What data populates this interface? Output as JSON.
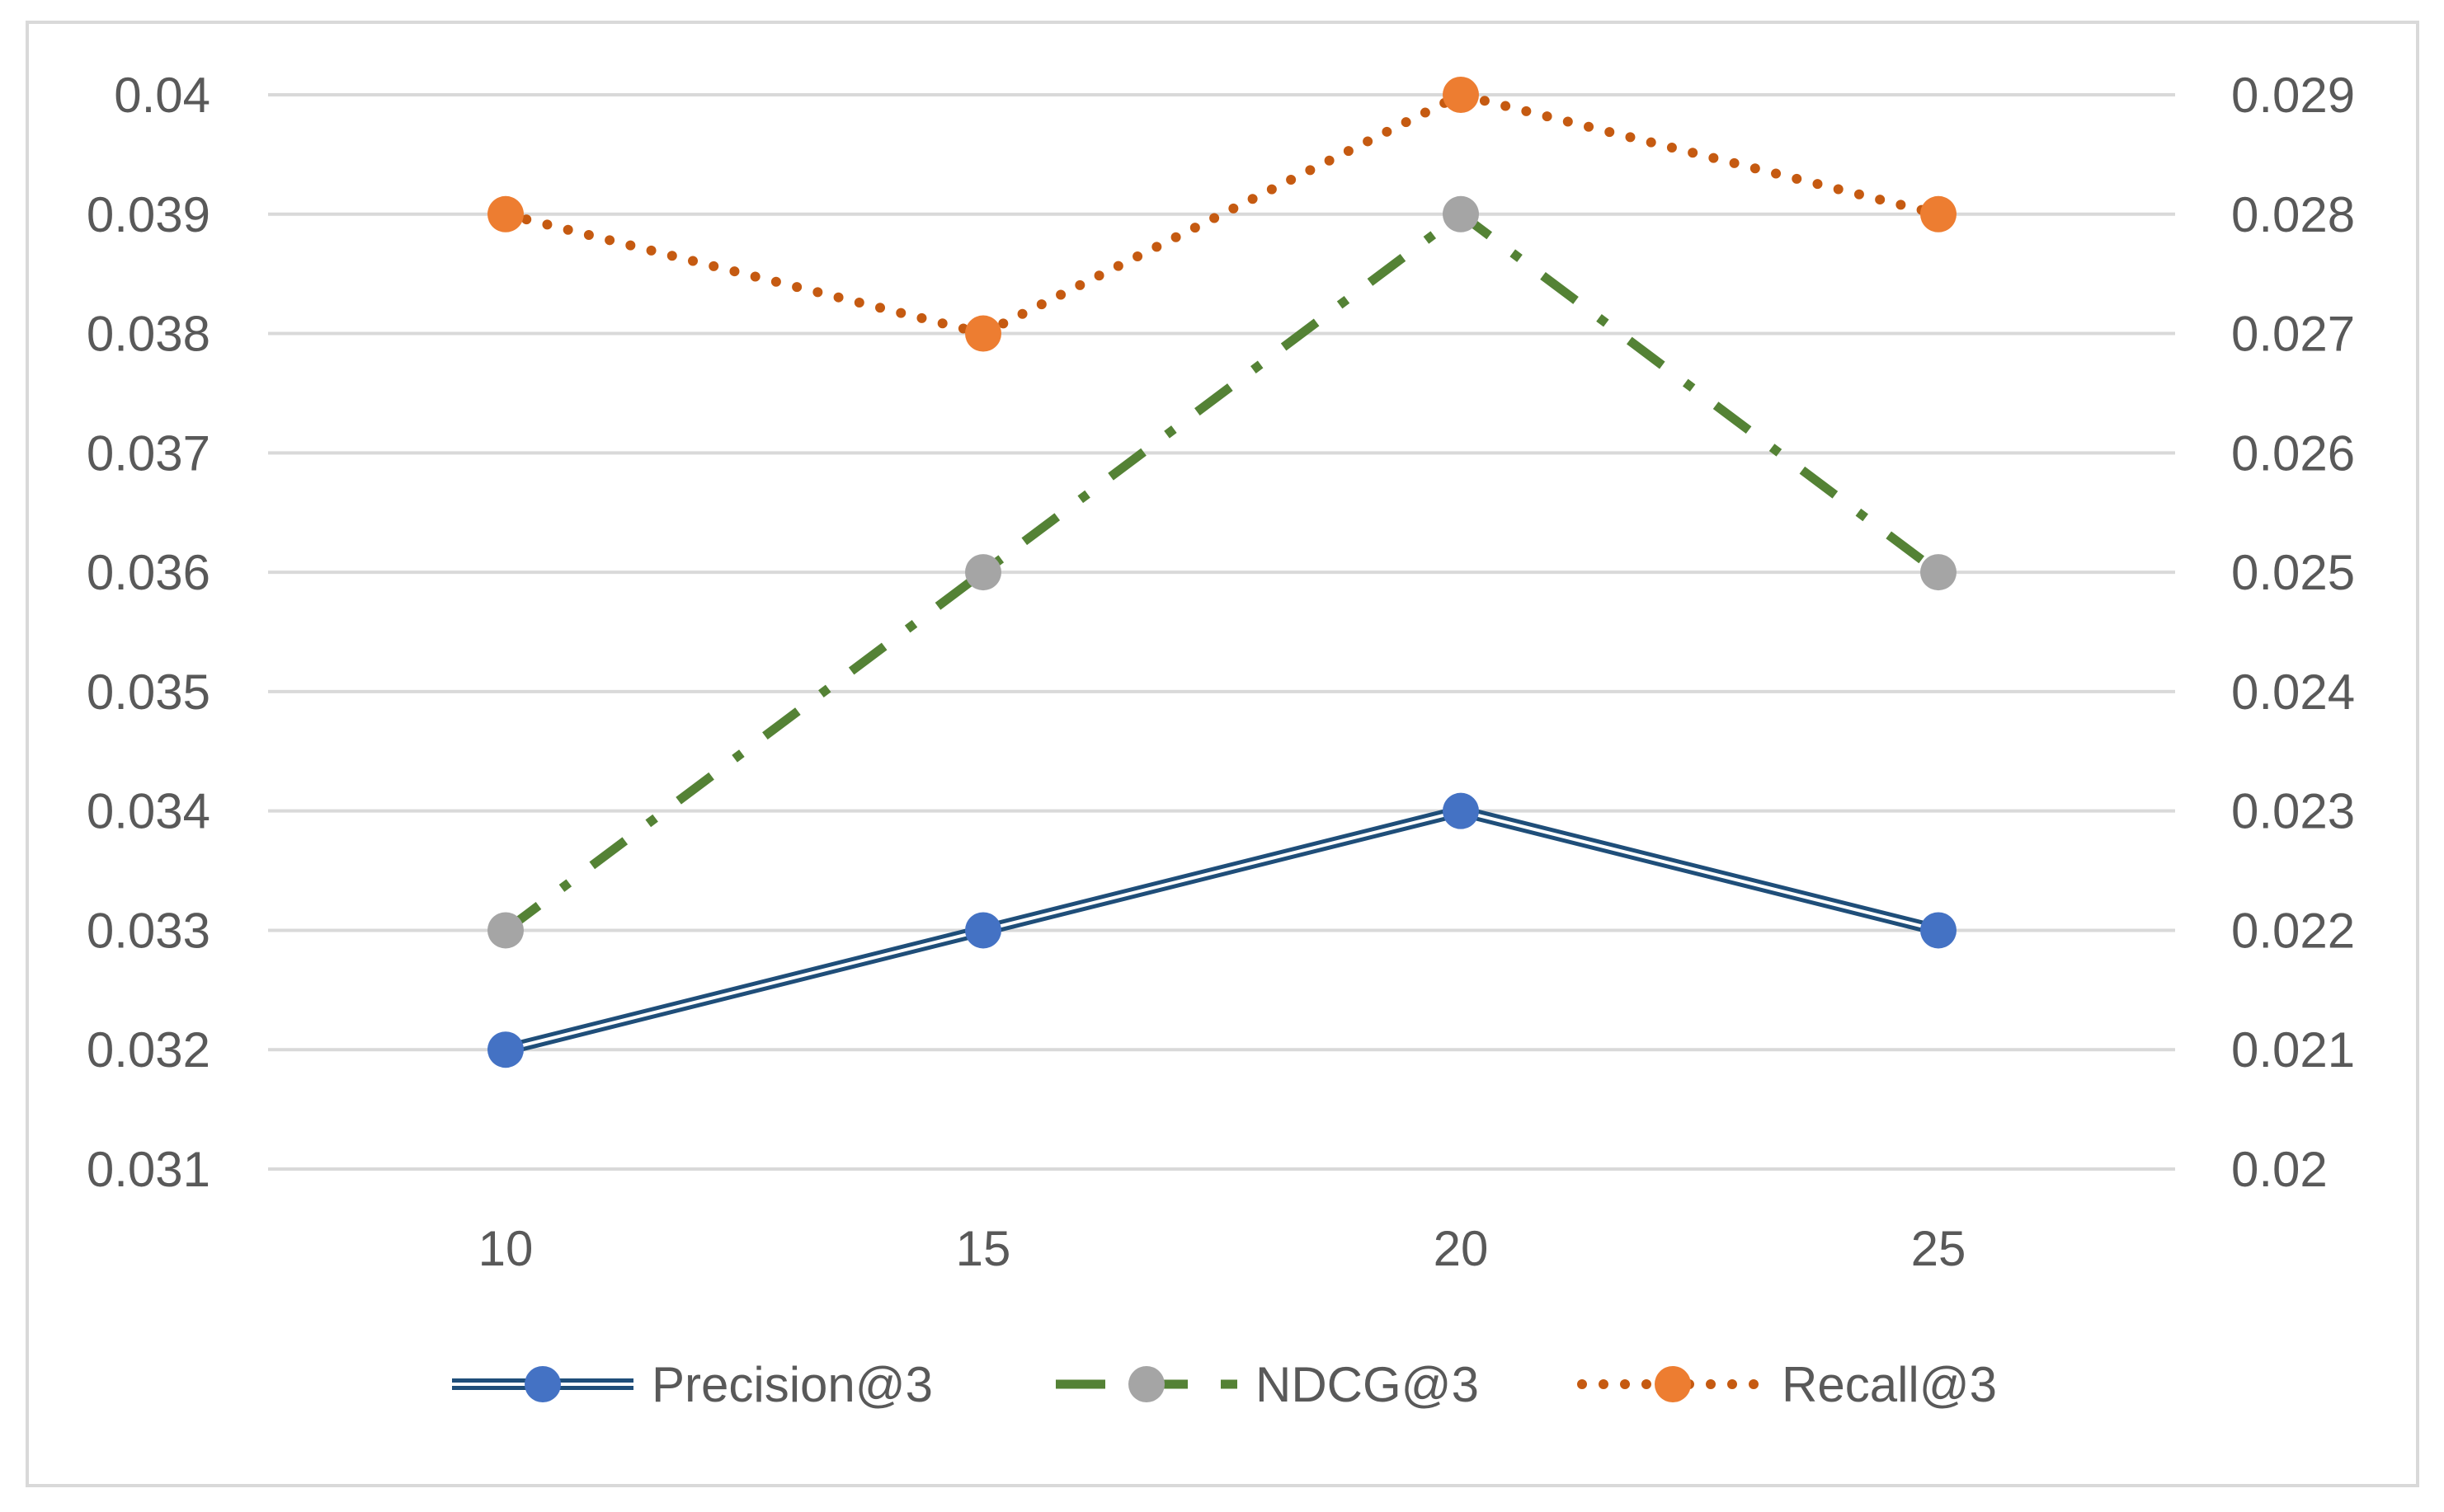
{
  "chart_data": {
    "type": "line",
    "title": "",
    "xlabel": "",
    "ylabel": "",
    "x": [
      10,
      15,
      20,
      25
    ],
    "x_tick_labels": [
      "10",
      "15",
      "20",
      "25"
    ],
    "left_axis": {
      "ylim": [
        0.031,
        0.04
      ],
      "ticks": [
        0.031,
        0.032,
        0.033,
        0.034,
        0.035,
        0.036,
        0.037,
        0.038,
        0.039,
        0.04
      ],
      "tick_labels": [
        "0.031",
        "0.032",
        "0.033",
        "0.034",
        "0.035",
        "0.036",
        "0.037",
        "0.038",
        "0.039",
        "0.04"
      ]
    },
    "right_axis": {
      "ylim": [
        0.02,
        0.029
      ],
      "ticks": [
        0.02,
        0.021,
        0.022,
        0.023,
        0.024,
        0.025,
        0.026,
        0.027,
        0.028,
        0.029
      ],
      "tick_labels": [
        "0.02",
        "0.021",
        "0.022",
        "0.023",
        "0.024",
        "0.025",
        "0.026",
        "0.027",
        "0.028",
        "0.029"
      ]
    },
    "grid": true,
    "legend_position": "bottom",
    "series": [
      {
        "name": "Precision@3",
        "axis": "left",
        "values": [
          0.032,
          0.033,
          0.034,
          0.033
        ],
        "line_color": "#1F4E79",
        "marker_color": "#4472C4",
        "style": "double"
      },
      {
        "name": "NDCG@3",
        "axis": "left",
        "values": [
          0.033,
          0.036,
          0.039,
          0.036
        ],
        "line_color": "#548235",
        "marker_color": "#A5A5A5",
        "style": "dashdot"
      },
      {
        "name": "Recall@3",
        "axis": "right",
        "values": [
          0.028,
          0.027,
          0.029,
          0.028
        ],
        "line_color": "#C55A11",
        "marker_color": "#ED7D31",
        "style": "dotted"
      }
    ]
  }
}
